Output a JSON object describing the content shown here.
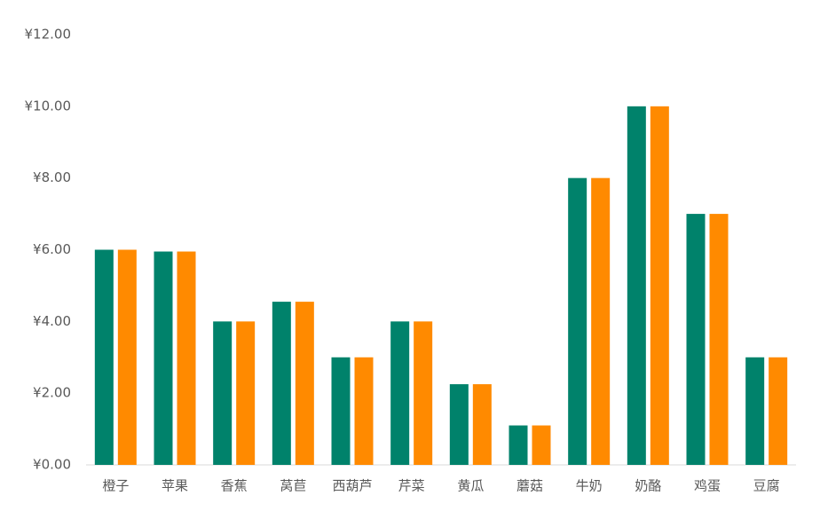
{
  "chart_data": {
    "type": "bar",
    "categories": [
      "橙子",
      "苹果",
      "香蕉",
      "莴苣",
      "西葫芦",
      "芹菜",
      "黄瓜",
      "蘑菇",
      "牛奶",
      "奶酪",
      "鸡蛋",
      "豆腐"
    ],
    "series": [
      {
        "color": "#00826b",
        "values": [
          6,
          5.95,
          4,
          4.55,
          3,
          4,
          2.25,
          1.1,
          8,
          10,
          7,
          3
        ]
      },
      {
        "color": "#ff8a00",
        "values": [
          6,
          5.95,
          4,
          4.55,
          3,
          4,
          2.25,
          1.1,
          8,
          10,
          7,
          3
        ]
      }
    ],
    "ylim": [
      0,
      12
    ],
    "yticks": [
      {
        "value": 0,
        "label": "¥0.00"
      },
      {
        "value": 2,
        "label": "¥2.00"
      },
      {
        "value": 4,
        "label": "¥4.00"
      },
      {
        "value": 6,
        "label": "¥6.00"
      },
      {
        "value": 8,
        "label": "¥8.00"
      },
      {
        "value": 10,
        "label": "¥10.00"
      },
      {
        "value": 12,
        "label": "¥12.00"
      }
    ],
    "grid": false
  }
}
